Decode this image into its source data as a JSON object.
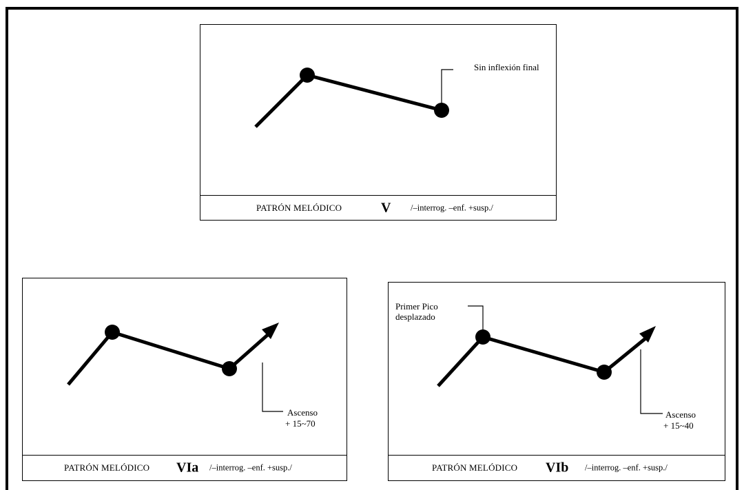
{
  "panels": [
    {
      "id": "V",
      "caption": {
        "pattern": "PATRÓN MELÓDICO",
        "code": "V",
        "features": "/–interrog. –enf. +susp./"
      },
      "annotations": [
        "Sin inflexión final"
      ]
    },
    {
      "id": "VIa",
      "caption": {
        "pattern": "PATRÓN MELÓDICO",
        "code": "VIa",
        "features": "/–interrog. –enf. +susp./"
      },
      "annotations": [
        "Ascenso",
        "+ 15~70"
      ]
    },
    {
      "id": "VIb",
      "caption": {
        "pattern": "PATRÓN MELÓDICO",
        "code": "VIb",
        "features": "/–interrog. –enf. +susp./"
      },
      "annotations": [
        "Primer Pico",
        "desplazado",
        "Ascenso",
        "+ 15~40"
      ]
    }
  ]
}
